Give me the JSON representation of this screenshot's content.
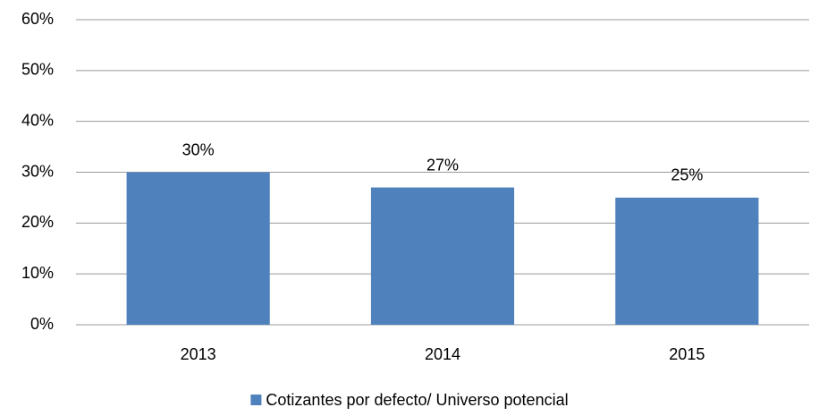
{
  "chart_data": {
    "type": "bar",
    "categories": [
      "2013",
      "2014",
      "2015"
    ],
    "series": [
      {
        "name": "Cotizantes por defecto/ Universo potencial",
        "color": "#4f81bd",
        "values": [
          30,
          27,
          25
        ],
        "value_labels": [
          "30%",
          "27%",
          "25%"
        ]
      }
    ],
    "ylim": [
      0,
      60
    ],
    "yticks": [
      {
        "value": 0,
        "label": "0%"
      },
      {
        "value": 10,
        "label": "10%"
      },
      {
        "value": 20,
        "label": "20%"
      },
      {
        "value": 30,
        "label": "30%"
      },
      {
        "value": 40,
        "label": "40%"
      },
      {
        "value": 50,
        "label": "50%"
      },
      {
        "value": 60,
        "label": "60%"
      }
    ],
    "grid": true,
    "legend": "bottom"
  }
}
